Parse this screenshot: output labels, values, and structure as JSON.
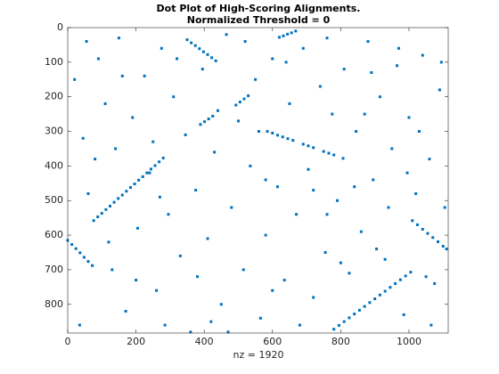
{
  "chart_data": {
    "type": "scatter",
    "title": "Dot Plot of High-Scoring Alignments.",
    "subtitle": "Normalized Threshold = 0",
    "x_label": "nz = 1920",
    "color": "#0072bd",
    "y_reversed": true,
    "xlim": [
      0,
      1115
    ],
    "ylim": [
      0,
      883
    ],
    "xticks": [
      0,
      200,
      400,
      600,
      800,
      1000
    ],
    "yticks": [
      0,
      100,
      200,
      300,
      400,
      500,
      600,
      700,
      800
    ],
    "x": [
      76,
      88,
      100,
      112,
      124,
      136,
      148,
      160,
      172,
      184,
      196,
      208,
      220,
      232,
      244,
      256,
      268,
      280,
      350,
      362,
      374,
      386,
      398,
      410,
      422,
      434,
      620,
      632,
      644,
      656,
      668,
      389,
      401,
      413,
      425,
      493,
      505,
      517,
      529,
      585,
      600,
      615,
      630,
      645,
      660,
      690,
      705,
      720,
      750,
      765,
      780,
      807,
      0,
      12,
      24,
      36,
      48,
      60,
      72,
      1010,
      1025,
      1040,
      1055,
      1070,
      1085,
      1100,
      1110,
      780,
      795,
      810,
      825,
      840,
      855,
      870,
      885,
      900,
      915,
      930,
      945,
      960,
      975,
      990,
      1005,
      20,
      45,
      60,
      90,
      110,
      130,
      150,
      170,
      190,
      205,
      225,
      240,
      260,
      275,
      295,
      310,
      330,
      345,
      360,
      375,
      395,
      410,
      430,
      450,
      465,
      480,
      500,
      515,
      535,
      550,
      565,
      580,
      600,
      615,
      635,
      650,
      670,
      690,
      705,
      720,
      740,
      755,
      775,
      790,
      810,
      825,
      845,
      860,
      880,
      895,
      915,
      930,
      950,
      965,
      985,
      1000,
      1020,
      1040,
      1060,
      1075,
      1090,
      1105,
      35,
      55,
      80,
      120,
      160,
      200,
      250,
      285,
      320,
      380,
      440,
      470,
      520,
      560,
      600,
      640,
      680,
      720,
      760,
      800,
      840,
      870,
      905,
      940,
      970,
      995,
      1030,
      1065,
      1095,
      140,
      270,
      420,
      580,
      760,
      890,
      1050
    ],
    "values": [
      558,
      547,
      537,
      526,
      516,
      505,
      494,
      484,
      473,
      462,
      452,
      441,
      431,
      420,
      409,
      399,
      388,
      377,
      35,
      44,
      52,
      61,
      70,
      78,
      87,
      96,
      28,
      24,
      19,
      15,
      10,
      280,
      272,
      264,
      256,
      224,
      215,
      206,
      197,
      300,
      305,
      311,
      316,
      321,
      326,
      337,
      342,
      347,
      358,
      363,
      368,
      378,
      615,
      627,
      639,
      651,
      664,
      676,
      688,
      558,
      570,
      583,
      595,
      607,
      619,
      632,
      640,
      872,
      861,
      850,
      839,
      828,
      817,
      806,
      795,
      784,
      773,
      762,
      751,
      740,
      729,
      718,
      707,
      150,
      320,
      480,
      90,
      220,
      700,
      30,
      820,
      260,
      580,
      140,
      420,
      760,
      60,
      540,
      200,
      660,
      310,
      880,
      470,
      120,
      610,
      360,
      800,
      20,
      520,
      270,
      700,
      400,
      150,
      840,
      600,
      90,
      460,
      730,
      220,
      540,
      60,
      410,
      780,
      170,
      650,
      250,
      500,
      120,
      710,
      300,
      590,
      40,
      440,
      200,
      670,
      350,
      110,
      830,
      260,
      480,
      80,
      380,
      740,
      180,
      520,
      860,
      40,
      380,
      620,
      140,
      730,
      330,
      860,
      90,
      720,
      240,
      880,
      40,
      300,
      760,
      100,
      860,
      470,
      30,
      680,
      460,
      250,
      640,
      520,
      60,
      420,
      300,
      860,
      100,
      350,
      490,
      850,
      440,
      540,
      130,
      720
    ]
  }
}
